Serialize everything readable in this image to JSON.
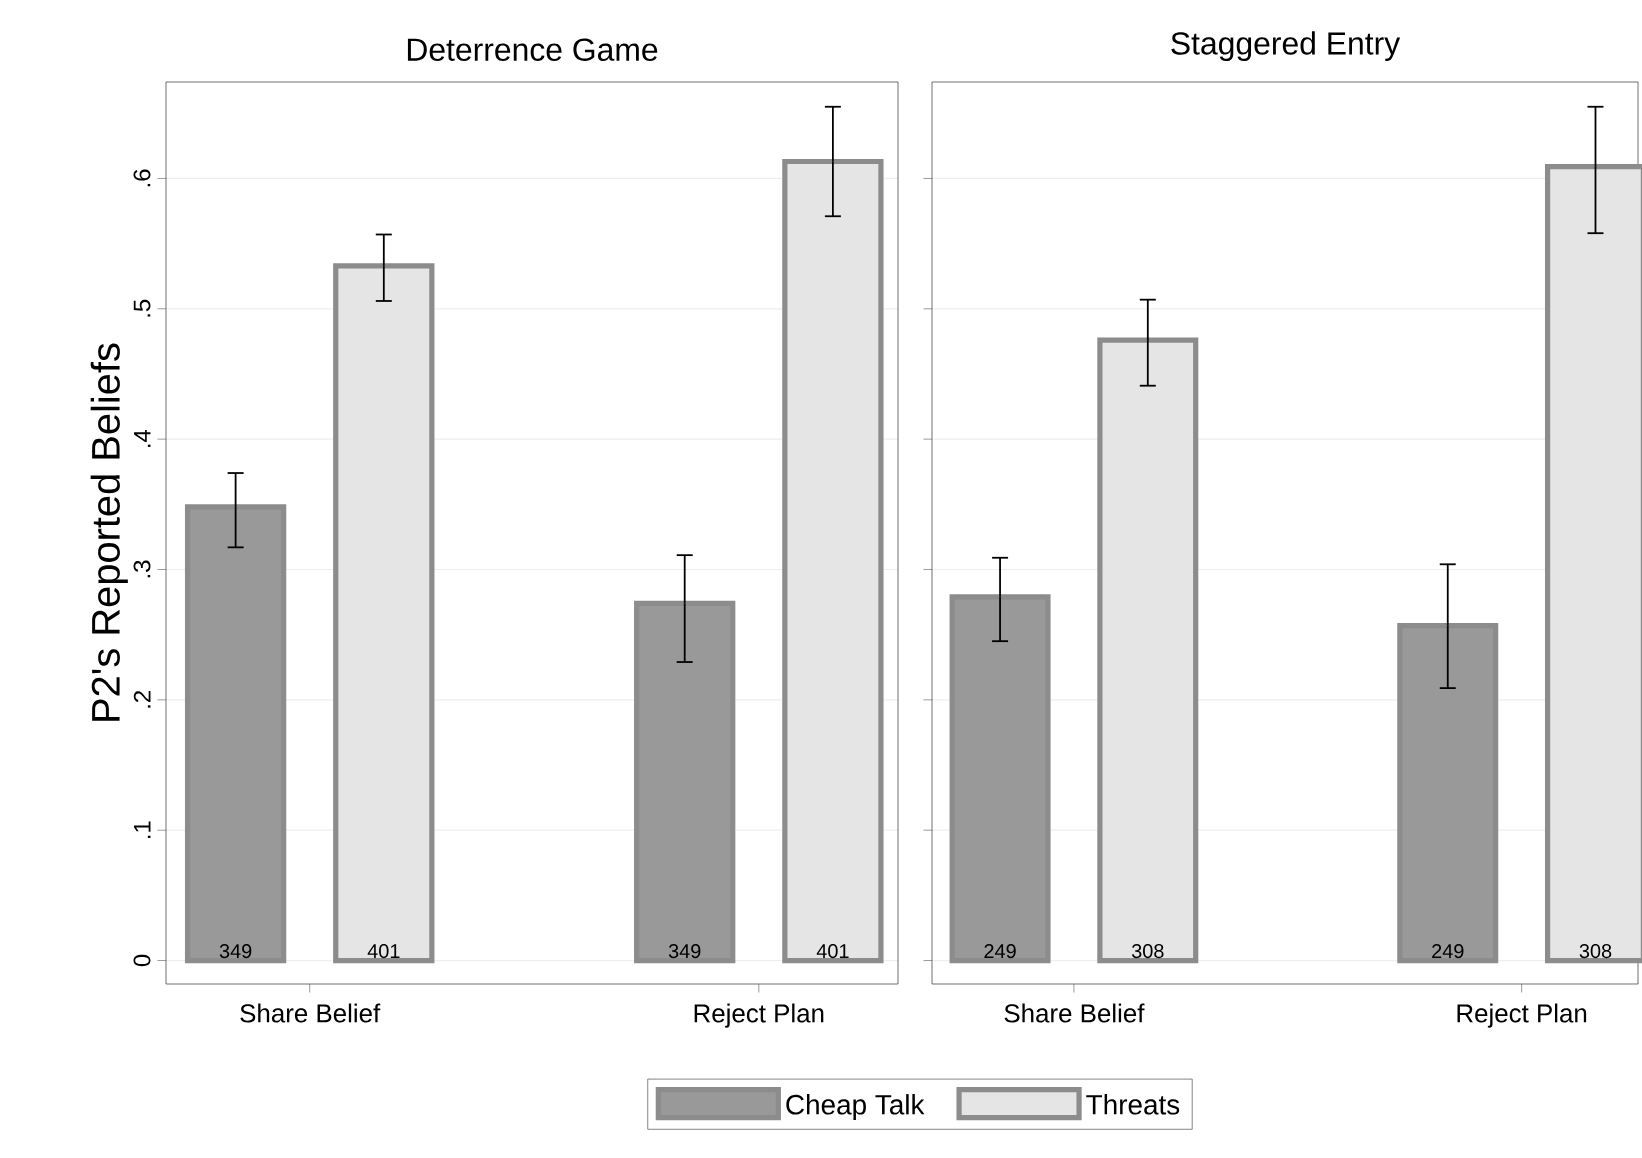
{
  "chart_data": [
    {
      "type": "bar",
      "title": "Deterrence Game",
      "ylabel": "P2's Reported Beliefs",
      "categories": [
        "Share Belief",
        "Reject Plan"
      ],
      "series": [
        {
          "name": "Cheap Talk",
          "color": "#999999",
          "values": [
            0.348,
            0.274
          ],
          "errors": [
            [
              0.317,
              0.374
            ],
            [
              0.229,
              0.311
            ]
          ]
        },
        {
          "name": "Threats",
          "color": "#e5e5e5",
          "values": [
            0.533,
            0.613
          ],
          "errors": [
            [
              0.506,
              0.557
            ],
            [
              0.571,
              0.655
            ]
          ]
        }
      ],
      "annotations": [
        "349",
        "401",
        "349",
        "401"
      ],
      "ylim": [
        -0.018,
        0.674
      ],
      "yticks": [
        0,
        {
          "value": 0.1,
          "label": ".1"
        },
        {
          "value": 0.2,
          "label": ".2"
        },
        {
          "value": 0.3,
          "label": ".3"
        },
        {
          "value": 0.4,
          "label": ".4"
        },
        {
          "value": 0.5,
          "label": ".5"
        },
        {
          "value": 0.6,
          "label": ".6"
        }
      ],
      "grid": "y",
      "legend": "bottom"
    },
    {
      "type": "bar",
      "title": "Staggered Entry",
      "categories": [
        "Share Belief",
        "Reject Plan"
      ],
      "series": [
        {
          "color": "#999999",
          "values": [
            0.279,
            0.257
          ],
          "errors": [
            [
              0.245,
              0.309
            ],
            [
              0.209,
              0.304
            ]
          ]
        },
        {
          "color": "#e5e5e5",
          "values": [
            0.476,
            0.609
          ],
          "errors": [
            [
              0.441,
              0.507
            ],
            [
              0.558,
              0.655
            ]
          ]
        }
      ],
      "annotations": [
        "249",
        "308",
        "249",
        "308"
      ],
      "ylim": [
        -0.018,
        0.674
      ],
      "yticks": [
        0,
        {
          "value": 0.1,
          "label": null
        },
        {
          "value": 0.2,
          "label": null
        },
        {
          "value": 0.3,
          "label": null
        },
        {
          "value": 0.4,
          "label": null
        },
        {
          "value": 0.5,
          "label": null
        },
        {
          "value": 0.6,
          "label": null
        }
      ],
      "grid": "y",
      "tick_labels": "x"
    }
  ]
}
